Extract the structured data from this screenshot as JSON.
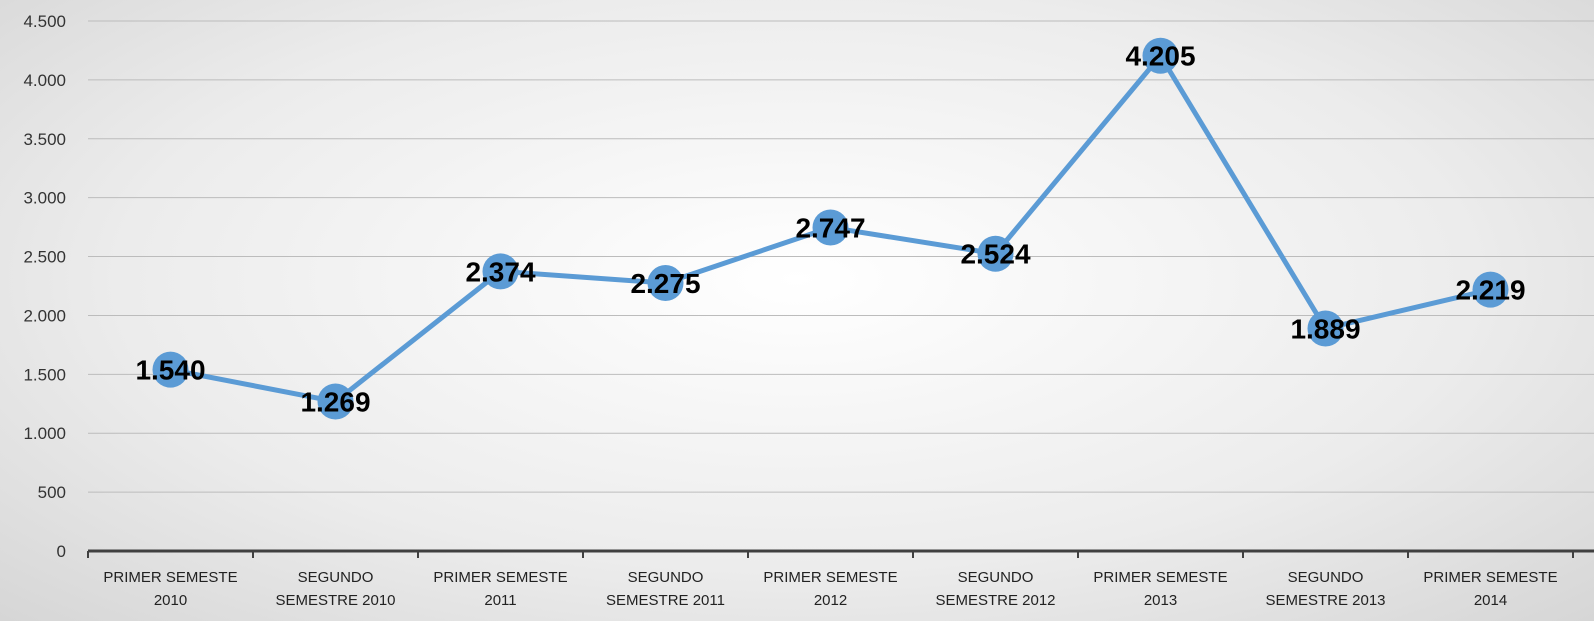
{
  "chart_data": {
    "type": "line",
    "categories": [
      "PRIMER SEMESTE 2010",
      "SEGUNDO SEMESTRE 2010",
      "PRIMER SEMESTE 2011",
      "SEGUNDO SEMESTRE 2011",
      "PRIMER SEMESTE 2012",
      "SEGUNDO SEMESTRE 2012",
      "PRIMER SEMESTE 2013",
      "SEGUNDO SEMESTRE 2013",
      "PRIMER SEMESTE 2014"
    ],
    "values": [
      1540,
      1269,
      2374,
      2275,
      2747,
      2524,
      4205,
      1889,
      2219
    ],
    "value_labels": [
      "1.540",
      "1.269",
      "2.374",
      "2.275",
      "2.747",
      "2.524",
      "4.205",
      "1.889",
      "2.219"
    ],
    "color": "#5b9bd5",
    "ylim": [
      0,
      4500
    ],
    "yticks": [
      0,
      500,
      {
        "value": 1000,
        "label": "1.000"
      },
      {
        "value": 1500,
        "label": "1.500"
      },
      {
        "value": 2000,
        "label": "2.000"
      },
      {
        "value": 2500,
        "label": "2.500"
      },
      {
        "value": 3000,
        "label": "3.000"
      },
      {
        "value": 3500,
        "label": "3.500"
      },
      {
        "value": 4000,
        "label": "4.000"
      },
      {
        "value": 4500,
        "label": "4.500"
      }
    ],
    "grid": true
  }
}
